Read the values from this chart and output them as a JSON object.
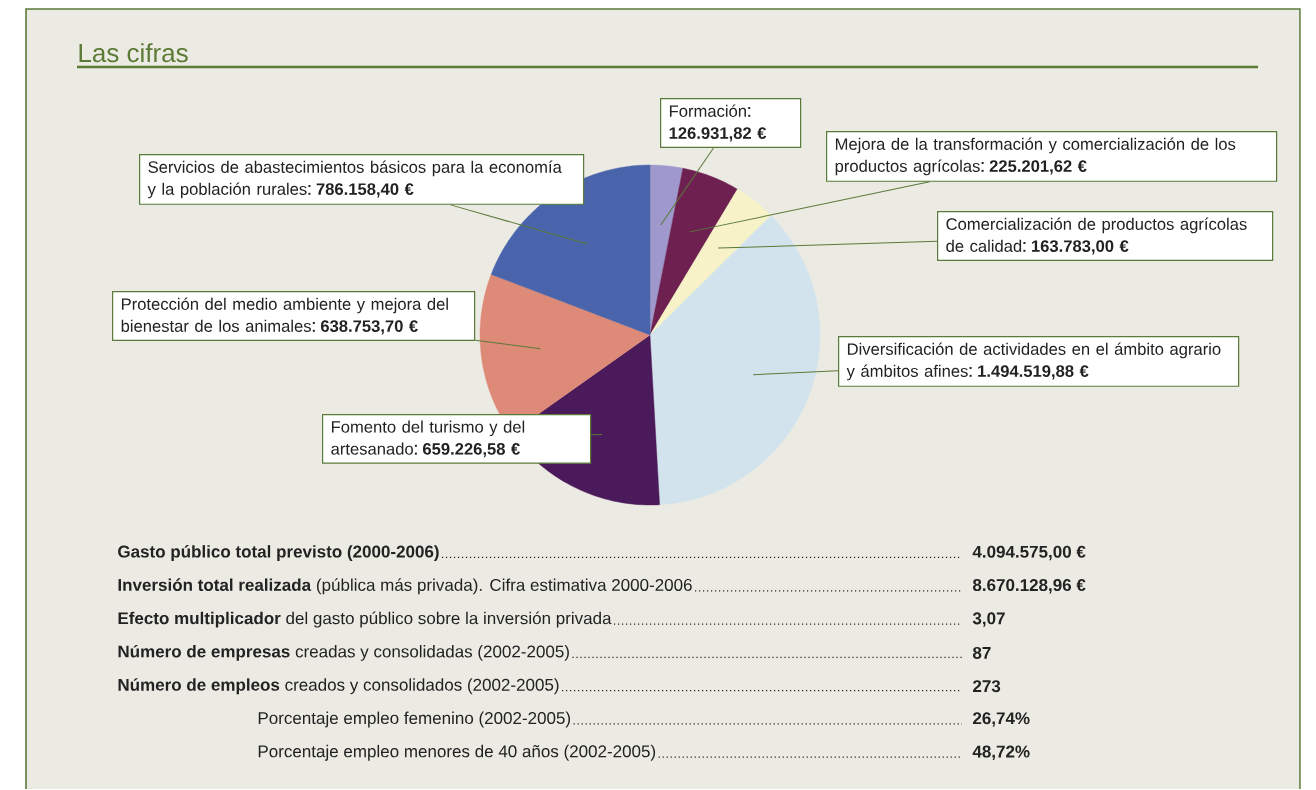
{
  "chart_data": {
    "type": "pie",
    "title": "Las cifras",
    "categories": [
      "Formación",
      "Mejora de la transformación y comercialización de los productos agrícolas",
      "Comercialización de productos agrícolas de calidad",
      "Diversificación de actividades en el ámbito agrario y ámbitos afines",
      "Fomento del turismo y del artesanado",
      "Protección del medio ambiente y mejora del bienestar de los animales",
      "Servicios de abastecimientos básicos para la economía y la población rurales"
    ],
    "values": [
      126931.82,
      225201.62,
      163783.0,
      1494519.88,
      659226.58,
      638753.7,
      786158.4
    ],
    "colors": [
      "#9e98cc",
      "#6e2150",
      "#f7f2c8",
      "#d3e3ee",
      "#4b1a5a",
      "#de8a78",
      "#4a64ab"
    ],
    "value_labels": [
      "126.931,82 €",
      "225.201,62 €",
      "163.783,00 €",
      "1.494.519,88 €",
      "659.226,58 €",
      "638.753,70 €",
      "786.158,40 €"
    ],
    "annotations": [
      "**Gasto público total previsto (2000-2006)**",
      "**Inversión total realizada** (pública más privada). Cifra estimativa 2000-2006",
      "**Efecto multiplicador** del gasto público sobre la inversión privada",
      "**Número de empresas** creadas y consolidadas (2002-2005)",
      "**Número de empleos** creados y consolidados (2002-2005)",
      "Porcentaje empleo femenino (2002-2005)",
      "Porcentaje empleo menores de 40 años (2002-2005)",
      "4.094.575,00 €",
      "8.670.128,96 €",
      "3,07",
      "87",
      "273",
      "26,74%",
      "48,72%"
    ]
  }
}
